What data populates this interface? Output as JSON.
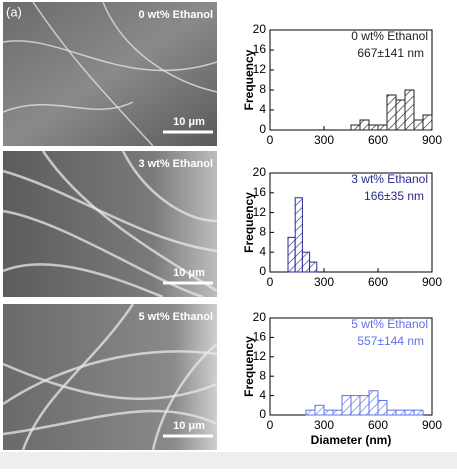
{
  "panel_label": "(a)",
  "images": [
    {
      "label": "0 wt% Ethanol",
      "scale": "10 μm"
    },
    {
      "label": "3 wt% Ethanol",
      "scale": "10 μm"
    },
    {
      "label": "5 wt% Ethanol",
      "scale": "10 μm"
    }
  ],
  "chart_data": [
    {
      "type": "histogram",
      "title": "0 wt% Ethanol",
      "subtitle": "667±141 nm",
      "ylabel": "Frequency",
      "bins": [
        450,
        500,
        550,
        600,
        650,
        700,
        750,
        800,
        850,
        900
      ],
      "values": [
        1,
        2,
        1,
        1,
        7,
        6,
        8,
        2,
        3
      ],
      "color": "#222222",
      "xlim": [
        0,
        900
      ],
      "xticks": [
        0,
        300,
        600,
        900
      ],
      "ylim": [
        0,
        20
      ],
      "yticks": [
        0,
        4,
        8,
        12,
        16,
        20
      ]
    },
    {
      "type": "histogram",
      "title": "3 wt% Ethanol",
      "subtitle": "166±35 nm",
      "ylabel": "Frequency",
      "bins": [
        100,
        140,
        180,
        220,
        260
      ],
      "values": [
        7,
        15,
        4,
        2
      ],
      "color": "#2a2a8f",
      "xlim": [
        0,
        900
      ],
      "xticks": [
        0,
        300,
        600,
        900
      ],
      "ylim": [
        0,
        20
      ],
      "yticks": [
        0,
        4,
        8,
        12,
        16,
        20
      ]
    },
    {
      "type": "histogram",
      "title": "5 wt% Ethanol",
      "subtitle": "557±144 nm",
      "ylabel": "Frequency",
      "xlabel": "Diameter (nm)",
      "bins": [
        200,
        250,
        300,
        350,
        400,
        450,
        500,
        550,
        600,
        650,
        700,
        750,
        800,
        850
      ],
      "values": [
        1,
        2,
        1,
        1,
        4,
        4,
        4,
        5,
        3,
        1,
        1,
        1,
        1
      ],
      "color": "#5f73e6",
      "xlim": [
        0,
        900
      ],
      "xticks": [
        0,
        300,
        600,
        900
      ],
      "ylim": [
        0,
        20
      ],
      "yticks": [
        0,
        4,
        8,
        12,
        16,
        20
      ]
    }
  ]
}
